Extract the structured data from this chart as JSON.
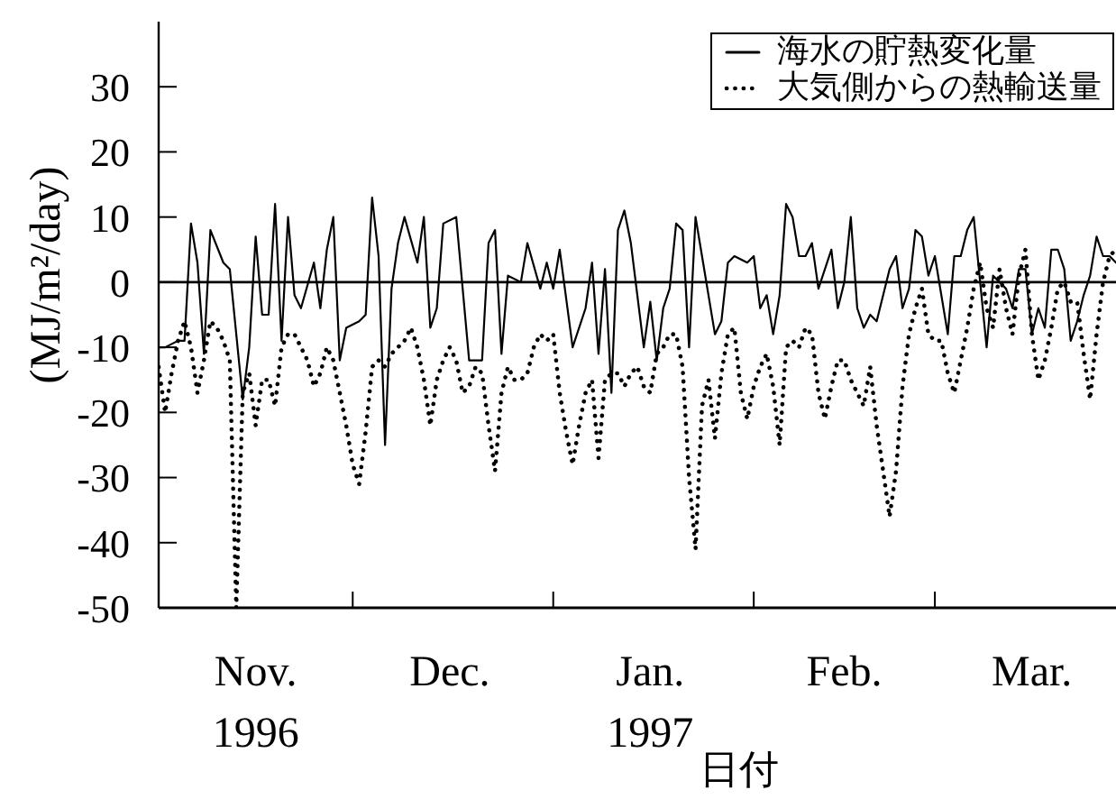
{
  "chart_data": {
    "type": "line",
    "xlabel": "日付",
    "ylabel": "(MJ/m²/day)",
    "xlim": [
      "1996-11-01",
      "1997-03-29"
    ],
    "xticks": [
      {
        "value": "1996-11-16",
        "label": "Nov.\n1996"
      },
      {
        "value": "1996-12-01",
        "label": null
      },
      {
        "value": "1996-12-16",
        "label": "Dec."
      },
      {
        "value": "1997-01-01",
        "label": null
      },
      {
        "value": "1997-01-16",
        "label": "Jan.\n1997"
      },
      {
        "value": "1997-02-01",
        "label": null
      },
      {
        "value": "1997-02-15",
        "label": "Feb."
      },
      {
        "value": "1997-03-01",
        "label": null
      },
      {
        "value": "1997-03-16",
        "label": "Mar."
      }
    ],
    "ylim": [
      -50,
      40
    ],
    "yticks": [
      -50,
      -40,
      -30,
      -20,
      -10,
      0,
      10,
      20,
      30
    ],
    "legend": "top right",
    "ref_lines": [
      {
        "axis": "y",
        "value": 0
      }
    ],
    "x": [
      "1996-11-01",
      "1996-11-02",
      "1996-11-03",
      "1996-11-04",
      "1996-11-05",
      "1996-11-06",
      "1996-11-07",
      "1996-11-08",
      "1996-11-09",
      "1996-11-10",
      "1996-11-11",
      "1996-11-12",
      "1996-11-13",
      "1996-11-14",
      "1996-11-15",
      "1996-11-16",
      "1996-11-17",
      "1996-11-18",
      "1996-11-19",
      "1996-11-20",
      "1996-11-21",
      "1996-11-22",
      "1996-11-23",
      "1996-11-24",
      "1996-11-25",
      "1996-11-26",
      "1996-11-27",
      "1996-11-28",
      "1996-11-29",
      "1996-11-30",
      "1996-12-01",
      "1996-12-02",
      "1996-12-03",
      "1996-12-04",
      "1996-12-05",
      "1996-12-06",
      "1996-12-07",
      "1996-12-08",
      "1996-12-09",
      "1996-12-10",
      "1996-12-11",
      "1996-12-12",
      "1996-12-13",
      "1996-12-14",
      "1996-12-15",
      "1996-12-16",
      "1996-12-17",
      "1996-12-18",
      "1996-12-19",
      "1996-12-20",
      "1996-12-21",
      "1996-12-22",
      "1996-12-23",
      "1996-12-24",
      "1996-12-25",
      "1996-12-26",
      "1996-12-27",
      "1996-12-28",
      "1996-12-29",
      "1996-12-30",
      "1996-12-31",
      "1997-01-01",
      "1997-01-02",
      "1997-01-03",
      "1997-01-04",
      "1997-01-05",
      "1997-01-06",
      "1997-01-07",
      "1997-01-08",
      "1997-01-09",
      "1997-01-10",
      "1997-01-11",
      "1997-01-12",
      "1997-01-13",
      "1997-01-14",
      "1997-01-15",
      "1997-01-16",
      "1997-01-17",
      "1997-01-18",
      "1997-01-19",
      "1997-01-20",
      "1997-01-21",
      "1997-01-22",
      "1997-01-23",
      "1997-01-24",
      "1997-01-25",
      "1997-01-26",
      "1997-01-27",
      "1997-01-28",
      "1997-01-29",
      "1997-01-30",
      "1997-01-31",
      "1997-02-01",
      "1997-02-02",
      "1997-02-03",
      "1997-02-04",
      "1997-02-05",
      "1997-02-06",
      "1997-02-07",
      "1997-02-08",
      "1997-02-09",
      "1997-02-10",
      "1997-02-11",
      "1997-02-12",
      "1997-02-13",
      "1997-02-14",
      "1997-02-15",
      "1997-02-16",
      "1997-02-17",
      "1997-02-18",
      "1997-02-19",
      "1997-02-20",
      "1997-02-21",
      "1997-02-22",
      "1997-02-23",
      "1997-02-24",
      "1997-02-25",
      "1997-02-26",
      "1997-02-27",
      "1997-02-28",
      "1997-03-01",
      "1997-03-02",
      "1997-03-03",
      "1997-03-04",
      "1997-03-05",
      "1997-03-06",
      "1997-03-07",
      "1997-03-08",
      "1997-03-09",
      "1997-03-10",
      "1997-03-11",
      "1997-03-12",
      "1997-03-13",
      "1997-03-14",
      "1997-03-15",
      "1997-03-16",
      "1997-03-17",
      "1997-03-18",
      "1997-03-19",
      "1997-03-20",
      "1997-03-21",
      "1997-03-22",
      "1997-03-23",
      "1997-03-24",
      "1997-03-25",
      "1997-03-26",
      "1997-03-27",
      "1997-03-28",
      "1997-03-29"
    ],
    "series": [
      {
        "name": "海水の貯熱変化量",
        "color": "#000000",
        "line_style": "solid",
        "x": [
          "1996-11-01",
          "1996-11-02",
          "1996-11-04",
          "1996-11-05",
          "1996-11-06",
          "1996-11-07",
          "1996-11-08",
          "1996-11-09",
          "1996-11-11",
          "1996-11-12",
          "1996-11-14",
          "1996-11-15",
          "1996-11-16",
          "1996-11-17",
          "1996-11-18",
          "1996-11-19",
          "1996-11-20",
          "1996-11-21",
          "1996-11-22",
          "1996-11-23",
          "1996-11-25",
          "1996-11-26",
          "1996-11-27",
          "1996-11-28",
          "1996-11-29",
          "1996-11-30",
          "1996-12-02",
          "1996-12-03",
          "1996-12-04",
          "1996-12-05",
          "1996-12-06",
          "1996-12-07",
          "1996-12-08",
          "1996-12-09",
          "1996-12-11",
          "1996-12-12",
          "1996-12-13",
          "1996-12-14",
          "1996-12-15",
          "1996-12-17",
          "1996-12-19",
          "1996-12-21",
          "1996-12-22",
          "1996-12-23",
          "1996-12-24",
          "1996-12-25",
          "1996-12-27",
          "1996-12-28",
          "1996-12-30",
          "1996-12-31",
          "1997-01-01",
          "1997-01-02",
          "1997-01-04",
          "1997-01-06",
          "1997-01-07",
          "1997-01-08",
          "1997-01-09",
          "1997-01-10",
          "1997-01-11",
          "1997-01-12",
          "1997-01-13",
          "1997-01-15",
          "1997-01-16",
          "1997-01-17",
          "1997-01-18",
          "1997-01-19",
          "1997-01-20",
          "1997-01-21",
          "1997-01-22",
          "1997-01-23",
          "1997-01-24",
          "1997-01-26",
          "1997-01-27",
          "1997-01-28",
          "1997-01-29",
          "1997-01-31",
          "1997-02-01",
          "1997-02-02",
          "1997-02-03",
          "1997-02-04",
          "1997-02-05",
          "1997-02-06",
          "1997-02-07",
          "1997-02-08",
          "1997-02-09",
          "1997-02-10",
          "1997-02-11",
          "1997-02-13",
          "1997-02-14",
          "1997-02-15",
          "1997-02-16",
          "1997-02-17",
          "1997-02-18",
          "1997-02-19",
          "1997-02-20",
          "1997-02-22",
          "1997-02-23",
          "1997-02-24",
          "1997-02-25",
          "1997-02-26",
          "1997-02-27",
          "1997-02-28",
          "1997-03-01",
          "1997-03-03",
          "1997-03-04",
          "1997-03-05",
          "1997-03-06",
          "1997-03-07",
          "1997-03-08",
          "1997-03-09",
          "1997-03-10",
          "1997-03-11",
          "1997-03-12",
          "1997-03-13",
          "1997-03-14",
          "1997-03-15",
          "1997-03-16",
          "1997-03-17",
          "1997-03-18",
          "1997-03-19",
          "1997-03-20",
          "1997-03-21",
          "1997-03-22",
          "1997-03-23",
          "1997-03-24",
          "1997-03-25",
          "1997-03-26",
          "1997-03-27",
          "1997-03-28",
          "1997-03-29"
        ],
        "values": [
          -10,
          -10,
          -9,
          -9,
          9,
          3,
          -11,
          8,
          3,
          2,
          -18,
          -10,
          7,
          -5,
          -5,
          12,
          -9,
          10,
          -2,
          -4,
          3,
          -4,
          5,
          10,
          -12,
          -7,
          -6,
          -5,
          13,
          4,
          -25,
          -1,
          6,
          10,
          3,
          10,
          -7,
          -4,
          9,
          10,
          -12,
          -12,
          6,
          8,
          -11,
          1,
          0,
          6,
          -1,
          3,
          -1,
          5,
          -10,
          -4,
          3,
          -11,
          2,
          -17,
          8,
          11,
          6,
          -10,
          -3,
          -12,
          -4,
          -1,
          9,
          8,
          -10,
          10,
          4,
          -8,
          -6,
          3,
          4,
          3,
          4,
          -4,
          -2,
          -8,
          -2,
          12,
          10,
          4,
          4,
          6,
          -1,
          5,
          -4,
          0,
          10,
          -4,
          -7,
          -5,
          -6,
          2,
          4,
          -4,
          -1,
          8,
          7,
          1,
          4,
          -8,
          4,
          4,
          8,
          10,
          0,
          -10,
          1,
          0,
          -1,
          -4,
          2,
          2,
          -8,
          -4,
          -7,
          5,
          5,
          2,
          -9,
          -6,
          -2,
          1,
          7,
          4,
          4,
          3
        ]
      },
      {
        "name": "大気側からの熱輸送量",
        "color": "#000000",
        "line_style": "dotted",
        "values": [
          -13,
          -20,
          -14,
          -9,
          -6,
          -10,
          -17,
          -12,
          -6,
          -7,
          -9,
          -12,
          -50,
          -17,
          -14,
          -22,
          -15,
          -15,
          -19,
          -10,
          -8,
          -8,
          -10,
          -12,
          -16,
          -14,
          -10,
          -12,
          -17,
          -22,
          -28,
          -31,
          -23,
          -13,
          -12,
          -13,
          -11,
          -10,
          -9,
          -7,
          -10,
          -15,
          -22,
          -15,
          -12,
          -10,
          -12,
          -17,
          -16,
          -13,
          -14,
          -22,
          -29,
          -17,
          -13,
          -15,
          -15,
          -14,
          -10,
          -8,
          -9,
          -8,
          -17,
          -23,
          -28,
          -22,
          -17,
          -15,
          -27,
          -15,
          -14,
          -14,
          -16,
          -14,
          -13,
          -16,
          -17,
          -11,
          -10,
          -8,
          -8,
          -13,
          -30,
          -41,
          -19,
          -15,
          -24,
          -14,
          -8,
          -7,
          -17,
          -21,
          -16,
          -13,
          -11,
          -16,
          -25,
          -10,
          -9,
          -10,
          -7,
          -8,
          -17,
          -21,
          -16,
          -12,
          -12,
          -15,
          -17,
          -19,
          -13,
          -22,
          -29,
          -36,
          -29,
          -16,
          -8,
          -4,
          -1,
          -8,
          -9,
          -9,
          -14,
          -17,
          -12,
          -7,
          -1,
          3,
          -4,
          -7,
          2,
          -4,
          -8,
          1,
          5,
          -8,
          -15,
          -12,
          -7,
          -1,
          0,
          -3,
          -3,
          -11,
          -18,
          -8,
          0,
          4,
          5
        ]
      }
    ]
  }
}
